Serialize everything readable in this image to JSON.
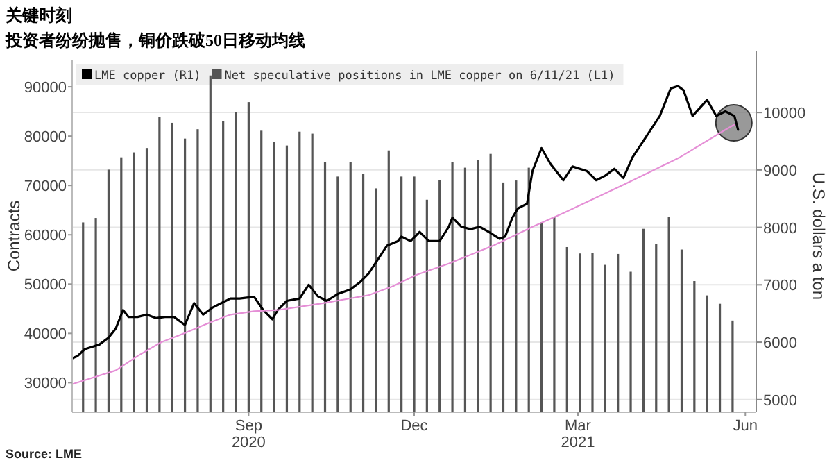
{
  "chart_data": {
    "type": "bar",
    "title": "关键时刻",
    "subtitle": "投资者纷纷抛售，铜价跌破50日移动均线",
    "ylabel": "Contracts",
    "y2label": "U.S. dollars a ton",
    "annotations": [
      "Source: LME"
    ],
    "xlim": [
      "2020-06-10",
      "2021-06-21"
    ],
    "xticks": [
      {
        "value": "2020-09-15",
        "label": "Sep\n2020"
      },
      {
        "value": "2020-12-15",
        "label": "Dec"
      },
      {
        "value": "2021-03-15",
        "label": "Mar\n2021"
      },
      {
        "value": "2021-06-15",
        "label": "Jun"
      }
    ],
    "ylim": [
      24000,
      95500
    ],
    "yticks": [
      30000,
      40000,
      50000,
      60000,
      70000,
      80000,
      90000
    ],
    "y2lim": [
      4780,
      10920
    ],
    "y2ticks": [
      5000,
      6000,
      7000,
      8000,
      9000,
      10000
    ],
    "grid": "y",
    "legend": "top left",
    "series": [
      {
        "name": "Net speculative positions in LME copper on 6/11/21 (L1)",
        "color": "#555555",
        "x": [
          "2020-06-16",
          "2020-06-23",
          "2020-06-30",
          "2020-07-07",
          "2020-07-14",
          "2020-07-21",
          "2020-07-28",
          "2020-08-04",
          "2020-08-11",
          "2020-08-18",
          "2020-08-25",
          "2020-09-01",
          "2020-09-08",
          "2020-09-15",
          "2020-09-22",
          "2020-09-29",
          "2020-10-06",
          "2020-10-13",
          "2020-10-20",
          "2020-10-27",
          "2020-11-03",
          "2020-11-10",
          "2020-11-17",
          "2020-11-24",
          "2020-12-01",
          "2020-12-08",
          "2020-12-15",
          "2020-12-22",
          "2020-12-29",
          "2021-01-05",
          "2021-01-12",
          "2021-01-19",
          "2021-01-26",
          "2021-02-02",
          "2021-02-09",
          "2021-02-16",
          "2021-02-23",
          "2021-03-02",
          "2021-03-09",
          "2021-03-16",
          "2021-03-23",
          "2021-03-30",
          "2021-04-06",
          "2021-04-13",
          "2021-04-20",
          "2021-04-27",
          "2021-05-04",
          "2021-05-11",
          "2021-05-18",
          "2021-05-25",
          "2021-06-01",
          "2021-06-08"
        ],
        "values": [
          62500,
          63400,
          73200,
          75700,
          76700,
          77600,
          83900,
          82700,
          79500,
          81400,
          92300,
          83000,
          84900,
          86900,
          81100,
          78800,
          78100,
          80900,
          80500,
          74800,
          71800,
          74800,
          72400,
          69400,
          77100,
          71800,
          71800,
          67100,
          71100,
          74800,
          73600,
          75200,
          76400,
          70600,
          71000,
          73600,
          62500,
          63600,
          57500,
          56200,
          56300,
          53900,
          56100,
          52500,
          61200,
          58200,
          63600,
          57000,
          50600,
          47700,
          46000,
          42600
        ]
      },
      {
        "name": "LME copper (R1)",
        "type": "line",
        "axis": "y2",
        "color": "#000000",
        "x": [
          "2020-06-10",
          "2020-06-13",
          "2020-06-17",
          "2020-06-21",
          "2020-06-25",
          "2020-06-30",
          "2020-07-04",
          "2020-07-08",
          "2020-07-11",
          "2020-07-16",
          "2020-07-21",
          "2020-07-26",
          "2020-07-31",
          "2020-08-05",
          "2020-08-11",
          "2020-08-16",
          "2020-08-21",
          "2020-08-26",
          "2020-08-31",
          "2020-09-05",
          "2020-09-10",
          "2020-09-18",
          "2020-09-23",
          "2020-09-28",
          "2020-10-01",
          "2020-10-06",
          "2020-10-13",
          "2020-10-18",
          "2020-10-23",
          "2020-10-28",
          "2020-11-03",
          "2020-11-10",
          "2020-11-15",
          "2020-11-20",
          "2020-11-25",
          "2020-11-30",
          "2020-12-06",
          "2020-12-08",
          "2020-12-13",
          "2020-12-18",
          "2020-12-23",
          "2020-12-29",
          "2021-01-03",
          "2021-01-05",
          "2021-01-10",
          "2021-01-15",
          "2021-01-20",
          "2021-01-25",
          "2021-01-31",
          "2021-02-03",
          "2021-02-07",
          "2021-02-10",
          "2021-02-15",
          "2021-02-18",
          "2021-02-23",
          "2021-02-28",
          "2021-03-07",
          "2021-03-12",
          "2021-03-20",
          "2021-03-25",
          "2021-03-30",
          "2021-04-04",
          "2021-04-09",
          "2021-04-14",
          "2021-04-19",
          "2021-04-24",
          "2021-04-29",
          "2021-05-05",
          "2021-05-09",
          "2021-05-12",
          "2021-05-17",
          "2021-05-25",
          "2021-05-30",
          "2021-06-04",
          "2021-06-09",
          "2021-06-11"
        ],
        "values": [
          5720,
          5760,
          5880,
          5920,
          5960,
          6080,
          6240,
          6560,
          6440,
          6440,
          6480,
          6420,
          6440,
          6440,
          6300,
          6680,
          6480,
          6600,
          6680,
          6760,
          6760,
          6790,
          6560,
          6400,
          6560,
          6720,
          6760,
          7000,
          6800,
          6720,
          6840,
          6920,
          7040,
          7200,
          7440,
          7680,
          7760,
          7840,
          7760,
          7920,
          7760,
          7760,
          8010,
          8170,
          8010,
          7970,
          8010,
          7920,
          7800,
          7840,
          8170,
          8330,
          8410,
          8980,
          9380,
          9100,
          8820,
          9060,
          8980,
          8820,
          8900,
          9020,
          8860,
          9220,
          9460,
          9700,
          9940,
          10420,
          10460,
          10390,
          9940,
          10220,
          9940,
          10020,
          9940,
          9700
        ]
      },
      {
        "type": "line",
        "axis": "y2",
        "color": "#e58fd6",
        "x": [
          "2020-06-10",
          "2020-07-04",
          "2020-07-16",
          "2020-07-29",
          "2020-08-11",
          "2020-08-23",
          "2020-09-05",
          "2020-09-18",
          "2020-10-01",
          "2020-10-26",
          "2020-11-20",
          "2020-12-03",
          "2020-12-16",
          "2021-01-03",
          "2021-01-28",
          "2021-02-18",
          "2021-03-07",
          "2021-04-09",
          "2021-05-10",
          "2021-06-04",
          "2021-06-09"
        ],
        "values": [
          5270,
          5510,
          5760,
          6000,
          6160,
          6320,
          6480,
          6540,
          6560,
          6680,
          6820,
          6970,
          7170,
          7370,
          7690,
          8010,
          8250,
          8740,
          9220,
          9700,
          9790
        ]
      }
    ]
  }
}
